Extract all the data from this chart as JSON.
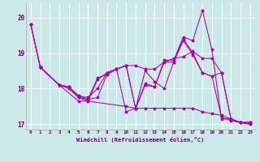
{
  "xlabel": "Windchill (Refroidissement éolien,°C)",
  "background_color": "#cce8e8",
  "grid_color": "#ffffff",
  "line_color": "#aa00aa",
  "xlim": [
    -0.5,
    23.5
  ],
  "ylim": [
    16.85,
    20.4
  ],
  "yticks": [
    17,
    18,
    19,
    20
  ],
  "xticks": [
    0,
    1,
    2,
    3,
    4,
    5,
    6,
    7,
    8,
    9,
    10,
    11,
    12,
    13,
    14,
    15,
    16,
    17,
    18,
    19,
    20,
    21,
    22,
    23
  ],
  "lines": [
    {
      "x": [
        0,
        1,
        3,
        4,
        5,
        6,
        7,
        8,
        9,
        10,
        11,
        12,
        13,
        14,
        15,
        16,
        17,
        18,
        19,
        20,
        21,
        22,
        23
      ],
      "y": [
        19.8,
        18.6,
        18.1,
        18.05,
        17.8,
        17.75,
        18.0,
        18.45,
        18.55,
        18.65,
        18.65,
        18.55,
        18.55,
        18.75,
        18.85,
        18.9,
        19.05,
        18.85,
        18.85,
        18.45,
        17.15,
        17.05,
        17.05
      ]
    },
    {
      "x": [
        1,
        3,
        4,
        5,
        6,
        7,
        8,
        9,
        10,
        11,
        12,
        13,
        14,
        15,
        16,
        17,
        18,
        19,
        20,
        21,
        22,
        23
      ],
      "y": [
        18.6,
        18.1,
        18.0,
        17.75,
        17.7,
        18.3,
        18.4,
        18.55,
        18.65,
        17.45,
        18.15,
        18.05,
        18.75,
        18.75,
        19.4,
        19.0,
        18.45,
        18.35,
        17.2,
        17.1,
        17.05,
        17.05
      ]
    },
    {
      "x": [
        0,
        1,
        3,
        4,
        5,
        6,
        7,
        8,
        9,
        10,
        11,
        12,
        13,
        14,
        15,
        16,
        17,
        18,
        19,
        20,
        21,
        22,
        23
      ],
      "y": [
        19.8,
        18.6,
        18.1,
        18.05,
        17.8,
        17.7,
        17.75,
        18.4,
        18.55,
        17.35,
        17.45,
        18.5,
        18.2,
        18.0,
        18.75,
        19.35,
        18.95,
        18.45,
        18.35,
        18.45,
        17.15,
        17.05,
        17.05
      ]
    },
    {
      "x": [
        1,
        3,
        4,
        5,
        6,
        7,
        8,
        9,
        10,
        11,
        12,
        13,
        14,
        15,
        16,
        17,
        18,
        19,
        20,
        21,
        22,
        23
      ],
      "y": [
        18.6,
        18.1,
        18.05,
        17.75,
        17.65,
        18.25,
        18.45,
        18.55,
        18.65,
        17.45,
        18.1,
        18.05,
        18.8,
        18.8,
        19.45,
        19.35,
        20.2,
        19.1,
        17.15,
        17.15,
        17.05,
        17.0
      ]
    },
    {
      "x": [
        0,
        1,
        3,
        5,
        6,
        10,
        11,
        12,
        13,
        14,
        15,
        16,
        17,
        18,
        19,
        20,
        21,
        22,
        23
      ],
      "y": [
        19.8,
        18.6,
        18.1,
        17.65,
        17.65,
        17.5,
        17.45,
        17.45,
        17.45,
        17.45,
        17.45,
        17.45,
        17.45,
        17.35,
        17.3,
        17.25,
        17.15,
        17.05,
        17.0
      ]
    }
  ]
}
